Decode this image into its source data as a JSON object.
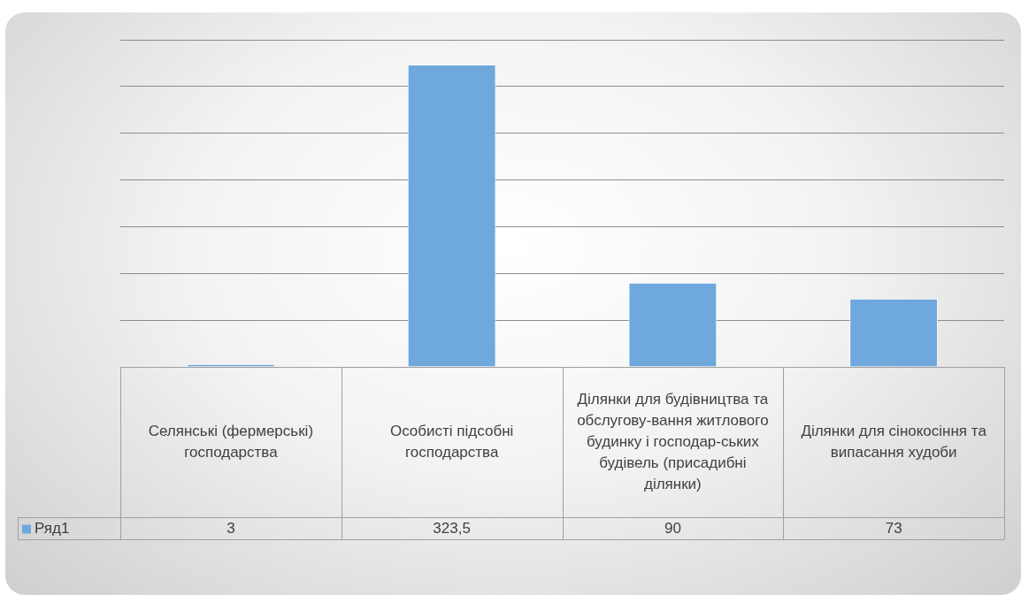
{
  "chart_data": {
    "type": "bar",
    "categories": [
      "Селянські (фермерські) господарства",
      "Особисті підсобні господарства",
      "Ділянки для будівництва та обслугову-вання житлового будинку і господар-ських будівель (присадибні ділянки)",
      "Ділянки для сінокосіння та випасання худоби"
    ],
    "series": [
      {
        "name": "Ряд1",
        "color": "#6fa8dc",
        "values": [
          3,
          323.5,
          90,
          73
        ],
        "value_labels": [
          "3",
          "323,5",
          "90",
          "73"
        ]
      }
    ],
    "grid": "y",
    "tick_labels": false,
    "legend": "bottom left"
  }
}
